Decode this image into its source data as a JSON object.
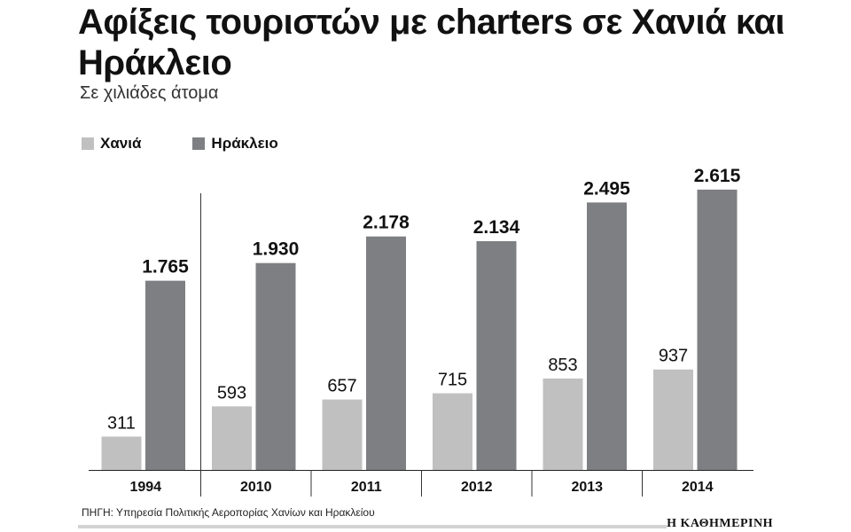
{
  "colors": {
    "chania": "#c0c0c0",
    "heraklion": "#7e7f82",
    "text": "#111111"
  },
  "chart_data": {
    "type": "bar",
    "title": "Αφίξεις τουριστών με charters σε Χανιά και Ηράκλειο",
    "subtitle": "Σε χιλιάδες άτομα",
    "categories": [
      "1994",
      "2010",
      "2011",
      "2012",
      "2013",
      "2014"
    ],
    "series": [
      {
        "name": "Χανιά",
        "values": [
          311,
          593,
          657,
          715,
          853,
          937
        ],
        "labels": [
          "311",
          "593",
          "657",
          "715",
          "853",
          "937"
        ]
      },
      {
        "name": "Ηράκλειο",
        "values": [
          1765,
          1930,
          2178,
          2134,
          2495,
          2615
        ],
        "labels": [
          "1.765",
          "1.930",
          "2.178",
          "2.134",
          "2.495",
          "2.615"
        ]
      }
    ],
    "ylim": [
      0,
      2615
    ],
    "grid": false,
    "legend": "top-left"
  },
  "footer": {
    "source": "ΠΗΓΗ: Υπηρεσία Πολιτικής Αεροπορίας Χανίων και Ηρακλείου",
    "brand": "Η ΚΑΘΗΜΕΡΙΝΗ"
  }
}
